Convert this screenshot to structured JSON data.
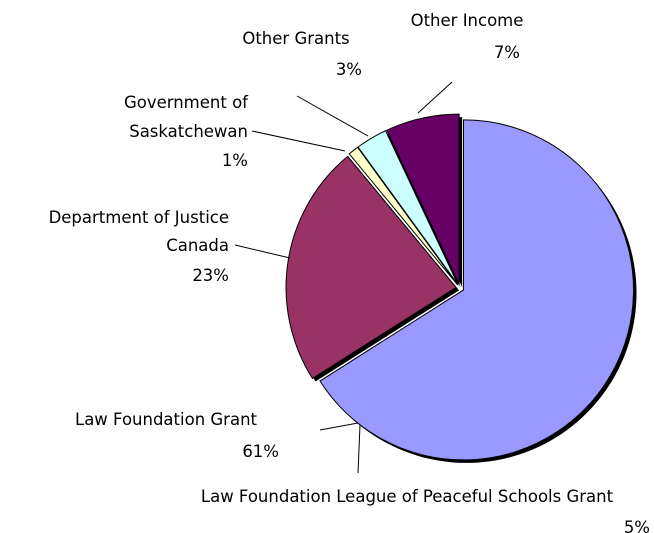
{
  "chart_data": {
    "type": "pie",
    "title": "",
    "slices": [
      {
        "label": "Law Foundation Grant",
        "percent_label": "61%",
        "value": 61,
        "color": "#9999FF"
      },
      {
        "label": "Law Foundation League of Peaceful Schools Grant",
        "percent_label": "5%",
        "value": 5,
        "color": "#9999FF"
      },
      {
        "label": "Department of Justice Canada",
        "percent_label": "23%",
        "value": 23,
        "color": "#993366"
      },
      {
        "label": "Government of Saskatchewan",
        "percent_label": "1%",
        "value": 1,
        "color": "#FFFFCC"
      },
      {
        "label": "Other Grants",
        "percent_label": "3%",
        "value": 3,
        "color": "#CCFFFF"
      },
      {
        "label": "Other Income",
        "percent_label": "7%",
        "value": 7,
        "color": "#660066"
      }
    ],
    "label_lines": {
      "other_income": [
        "Other Income",
        "7%"
      ],
      "other_grants": [
        "Other Grants",
        "3%"
      ],
      "government": [
        "Government of",
        "Saskatchewan",
        "1%"
      ],
      "justice": [
        "Department of Justice",
        "Canada",
        "23%"
      ],
      "law_foundation": [
        "Law Foundation Grant",
        "61%"
      ],
      "league": [
        "Law Foundation League of Peaceful Schools Grant",
        "5%"
      ]
    }
  }
}
